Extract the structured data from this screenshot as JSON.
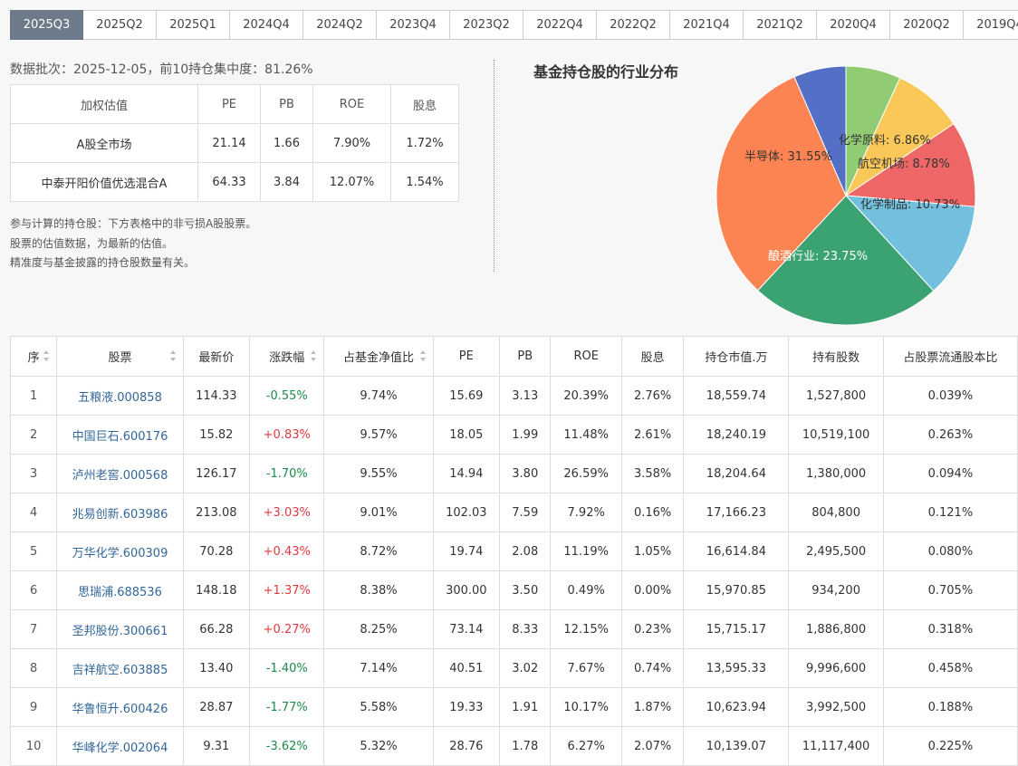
{
  "tabs": [
    "2025Q3",
    "2025Q2",
    "2025Q1",
    "2024Q4",
    "2024Q2",
    "2023Q4",
    "2023Q2",
    "2022Q4",
    "2022Q2",
    "2021Q4",
    "2021Q2",
    "2020Q4",
    "2020Q2",
    "2019Q4"
  ],
  "active_tab": "2025Q3",
  "batch_text": "数据批次：2025-12-05，前10持仓集中度：81.26%",
  "valuation": {
    "headers": [
      "加权估值",
      "PE",
      "PB",
      "ROE",
      "股息"
    ],
    "rows": [
      [
        "A股全市场",
        "21.14",
        "1.66",
        "7.90%",
        "1.72%"
      ],
      [
        "中泰开阳价值优选混合A",
        "64.33",
        "3.84",
        "12.07%",
        "1.54%"
      ]
    ]
  },
  "notes": [
    "参与计算的持仓股：下方表格中的非亏损A股股票。",
    "股票的估值数据，为最新的估值。",
    "精准度与基金披露的持仓股数量有关。"
  ],
  "pie": {
    "title": "基金持仓股的行业分布",
    "colors": {
      "半导体": "#fc8452",
      "酿酒行业": "#3ba272",
      "化学制品": "#ee6666",
      "航空机场": "#fac858",
      "化学原料": "#91cc75",
      "other-light-blue": "#73c0de",
      "other-blue": "#5470c6"
    }
  },
  "chart_data": {
    "type": "pie",
    "title": "基金持仓股的行业分布",
    "slices": [
      {
        "label": "化学原料: 6.86%",
        "name": "化学原料",
        "value": 6.86,
        "color": "#91cc75"
      },
      {
        "label": "航空机场: 8.78%",
        "name": "航空机场",
        "value": 8.78,
        "color": "#fac858"
      },
      {
        "label": "化学制品: 10.73%",
        "name": "化学制品",
        "value": 10.73,
        "color": "#ee6666"
      },
      {
        "label": "",
        "name": "",
        "value": 11.8,
        "color": "#73c0de"
      },
      {
        "label": "酿酒行业: 23.75%",
        "name": "酿酒行业",
        "value": 23.75,
        "color": "#3ba272"
      },
      {
        "label": "半导体: 31.55%",
        "name": "半导体",
        "value": 31.55,
        "color": "#fc8452"
      },
      {
        "label": "",
        "name": "",
        "value": 6.53,
        "color": "#5470c6"
      }
    ]
  },
  "holdings": {
    "headers": [
      "序",
      "股票",
      "最新价",
      "涨跌幅",
      "占基金净值比",
      "PE",
      "PB",
      "ROE",
      "股息",
      "持仓市值.万",
      "持有股数",
      "占股票流通股本比"
    ],
    "rows": [
      [
        "1",
        "五粮液.000858",
        "114.33",
        "-0.55%",
        "9.74%",
        "15.69",
        "3.13",
        "20.39%",
        "2.76%",
        "18,559.74",
        "1,527,800",
        "0.039%"
      ],
      [
        "2",
        "中国巨石.600176",
        "15.82",
        "+0.83%",
        "9.57%",
        "18.05",
        "1.99",
        "11.48%",
        "2.61%",
        "18,240.19",
        "10,519,100",
        "0.263%"
      ],
      [
        "3",
        "泸州老窖.000568",
        "126.17",
        "-1.70%",
        "9.55%",
        "14.94",
        "3.80",
        "26.59%",
        "3.58%",
        "18,204.64",
        "1,380,000",
        "0.094%"
      ],
      [
        "4",
        "兆易创新.603986",
        "213.08",
        "+3.03%",
        "9.01%",
        "102.03",
        "7.59",
        "7.92%",
        "0.16%",
        "17,166.23",
        "804,800",
        "0.121%"
      ],
      [
        "5",
        "万华化学.600309",
        "70.28",
        "+0.43%",
        "8.72%",
        "19.74",
        "2.08",
        "11.19%",
        "1.05%",
        "16,614.84",
        "2,495,500",
        "0.080%"
      ],
      [
        "6",
        "思瑞浦.688536",
        "148.18",
        "+1.37%",
        "8.38%",
        "300.00",
        "3.50",
        "0.49%",
        "0.00%",
        "15,970.85",
        "934,200",
        "0.705%"
      ],
      [
        "7",
        "圣邦股份.300661",
        "66.28",
        "+0.27%",
        "8.25%",
        "73.14",
        "8.33",
        "12.15%",
        "0.23%",
        "15,715.17",
        "1,886,800",
        "0.318%"
      ],
      [
        "8",
        "吉祥航空.603885",
        "13.40",
        "-1.40%",
        "7.14%",
        "40.51",
        "3.02",
        "7.67%",
        "0.74%",
        "13,595.33",
        "9,996,600",
        "0.458%"
      ],
      [
        "9",
        "华鲁恒升.600426",
        "28.87",
        "-1.77%",
        "5.58%",
        "19.33",
        "1.91",
        "10.17%",
        "1.87%",
        "10,623.94",
        "3,992,500",
        "0.188%"
      ],
      [
        "10",
        "华峰化学.002064",
        "9.31",
        "-3.62%",
        "5.32%",
        "28.76",
        "1.78",
        "6.27%",
        "2.07%",
        "10,139.07",
        "11,117,400",
        "0.225%"
      ]
    ]
  }
}
